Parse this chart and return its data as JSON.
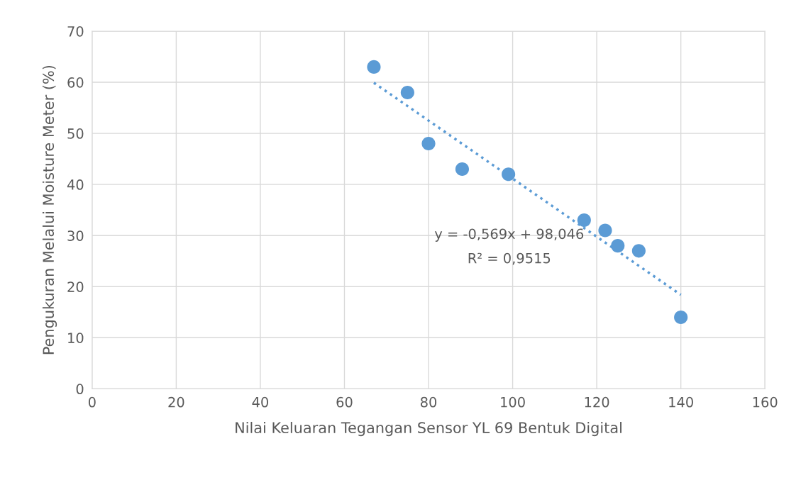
{
  "chart_data": {
    "type": "scatter",
    "xlabel": "Nilai Keluaran Tegangan Sensor YL 69 Bentuk Digital",
    "ylabel": "Pengukuran Melalui Moisture Meter (%)",
    "series": [
      {
        "color": "#5b9bd5",
        "marker": "circle",
        "x": [
          67,
          75,
          80,
          88,
          99,
          117,
          122,
          125,
          130,
          140
        ],
        "values": [
          63,
          58,
          48,
          43,
          42,
          33,
          31,
          28,
          27,
          14
        ]
      },
      {
        "type": "line",
        "color": "#5b9bd5",
        "line_style": "dotted",
        "x": [
          67,
          140
        ],
        "values": [
          59.9,
          18.4
        ]
      }
    ],
    "annotations": [
      "y = -0,569x + 98,046",
      "R² = 0,9515"
    ],
    "xlim": [
      0,
      160
    ],
    "xticks": [
      0,
      20,
      40,
      60,
      80,
      100,
      120,
      140,
      160
    ],
    "ylim": [
      0,
      70
    ],
    "yticks": [
      0,
      10,
      20,
      30,
      40,
      50,
      60,
      70
    ],
    "grid": true
  }
}
